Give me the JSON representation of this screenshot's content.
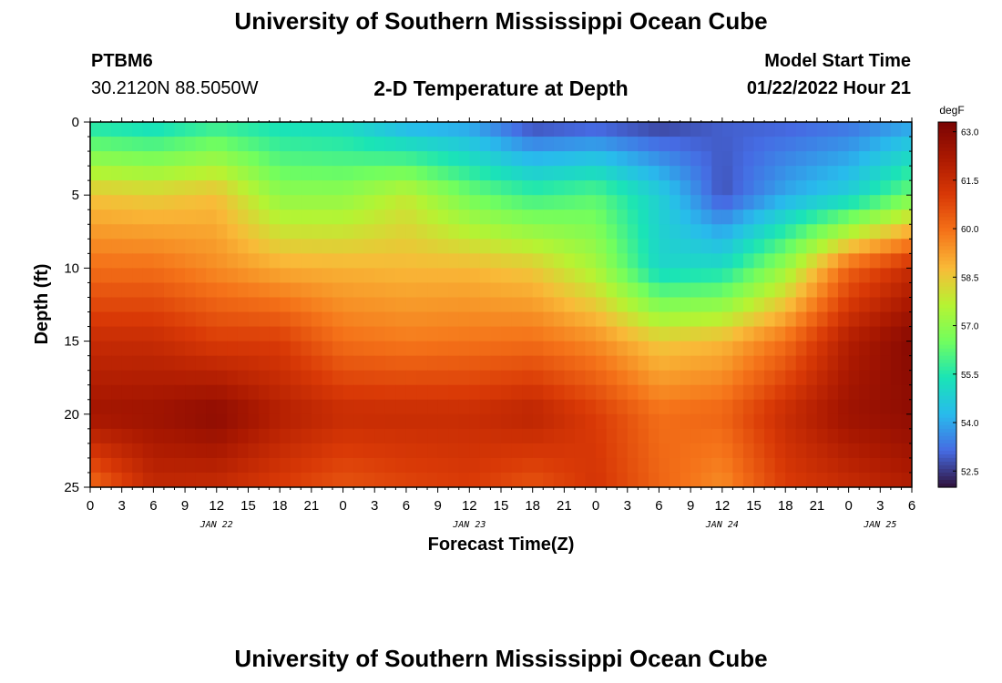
{
  "header": {
    "title": "University of Southern Mississippi Ocean Cube",
    "station_id": "PTBM6",
    "coords": "30.2120N  88.5050W",
    "plot_title": "2-D Temperature at Depth",
    "model_start_label": "Model Start Time",
    "model_start_value": "01/22/2022 Hour 21"
  },
  "footer": {
    "title": "University of Southern Mississippi Ocean Cube"
  },
  "chart_data": {
    "type": "heatmap",
    "title": "2-D Temperature at Depth",
    "xlabel": "Forecast Time(Z)",
    "ylabel": "Depth (ft)",
    "x_unit": "hours since 01/22/2022 00Z",
    "x_range": [
      0,
      78
    ],
    "x_tick_labels": [
      "0",
      "3",
      "6",
      "9",
      "12",
      "15",
      "18",
      "21",
      "0",
      "3",
      "6",
      "9",
      "12",
      "15",
      "18",
      "21",
      "0",
      "3",
      "6",
      "9",
      "12",
      "15",
      "18",
      "21",
      "0",
      "3",
      "6"
    ],
    "day_labels": [
      {
        "label": "JAN 22",
        "hour": 12
      },
      {
        "label": "JAN 23",
        "hour": 36
      },
      {
        "label": "JAN 24",
        "hour": 60
      },
      {
        "label": "JAN 25",
        "hour": 75
      }
    ],
    "y_range": [
      0,
      25
    ],
    "y_ticks": [
      0,
      5,
      10,
      15,
      20,
      25
    ],
    "y_inverted": true,
    "colorbar": {
      "unit": "degF",
      "min": 52.0,
      "max": 63.3,
      "tick_values": [
        63.0,
        61.5,
        60.0,
        58.5,
        57.0,
        55.5,
        54.0,
        52.5
      ],
      "tick_labels": [
        "63.0",
        "61.5",
        "60.0",
        "58.5",
        "57.0",
        "55.5",
        "54.0",
        "52.5"
      ],
      "colormap": "turbo"
    },
    "depth_levels_ft": [
      0,
      5,
      10,
      15,
      20,
      25
    ],
    "time_hours": [
      0,
      6,
      12,
      18,
      24,
      30,
      36,
      42,
      48,
      54,
      60,
      66,
      72,
      78
    ],
    "temperature_degF": [
      [
        55.3,
        55.0,
        55.6,
        55.2,
        55.0,
        54.0,
        53.8,
        52.6,
        52.8,
        52.5,
        53.0,
        53.0,
        53.2,
        53.8
      ],
      [
        58.6,
        58.4,
        58.7,
        57.0,
        57.0,
        57.8,
        56.5,
        55.8,
        56.2,
        54.8,
        52.8,
        54.0,
        54.8,
        56.5
      ],
      [
        60.0,
        60.0,
        59.5,
        59.0,
        58.9,
        58.8,
        58.8,
        58.5,
        57.4,
        55.0,
        55.2,
        57.2,
        60.2,
        61.5
      ],
      [
        61.5,
        61.5,
        61.0,
        61.0,
        60.0,
        59.8,
        59.9,
        60.0,
        59.5,
        58.5,
        58.8,
        60.0,
        62.0,
        63.0
      ],
      [
        62.4,
        62.5,
        62.9,
        62.0,
        61.5,
        61.5,
        61.5,
        61.8,
        61.0,
        60.0,
        60.2,
        61.5,
        62.5,
        62.8
      ],
      [
        60.0,
        61.6,
        61.5,
        61.0,
        60.5,
        60.8,
        61.0,
        60.5,
        61.2,
        60.2,
        59.5,
        61.0,
        61.5,
        62.0
      ]
    ]
  }
}
